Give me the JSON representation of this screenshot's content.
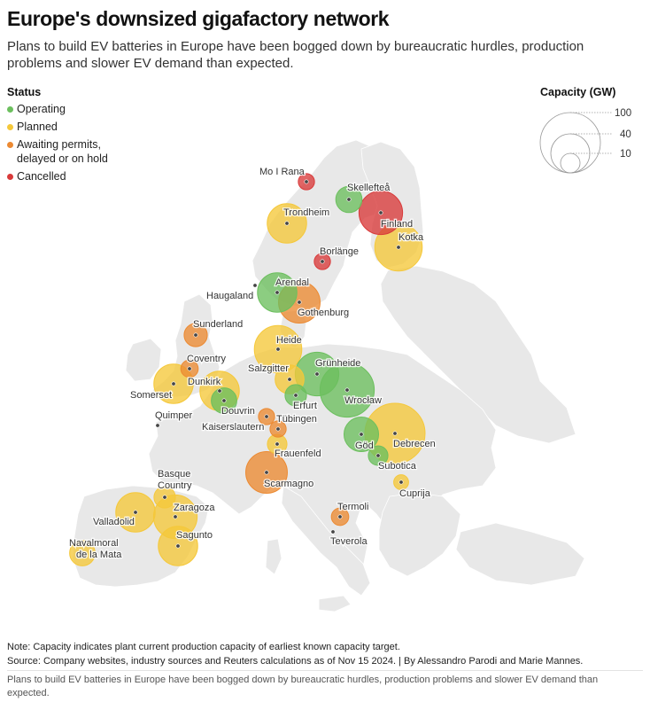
{
  "title": "Europe's downsized gigafactory network",
  "subtitle": "Plans to build EV batteries in Europe have been bogged down by bureaucratic hurdles, production problems and slower EV demand than expected.",
  "legend_status": {
    "title": "Status",
    "items": [
      {
        "key": "operating",
        "label": "Operating",
        "color": "#6cbf5e"
      },
      {
        "key": "planned",
        "label": "Planned",
        "color": "#f5c83a"
      },
      {
        "key": "awaiting",
        "label": "Awaiting permits, delayed or on hold",
        "line1": "Awaiting permits,",
        "line2": "delayed or on hold",
        "color": "#ec8a32"
      },
      {
        "key": "cancelled",
        "label": "Cancelled",
        "color": "#d93a3a"
      }
    ]
  },
  "legend_size": {
    "title": "Capacity (GW)",
    "values": [
      "100",
      "40",
      "10"
    ]
  },
  "map": {
    "land_color": "#e8e8e8",
    "sites": [
      {
        "name": "Mo I Rana",
        "status": "cancelled",
        "capacity_gw": 5
      },
      {
        "name": "Skellefteå",
        "status": "operating",
        "capacity_gw": 16
      },
      {
        "name": "Trondheim",
        "status": "planned",
        "capacity_gw": 40
      },
      {
        "name": "Finland",
        "status": "cancelled",
        "capacity_gw": 50
      },
      {
        "name": "Kotka",
        "status": "planned",
        "capacity_gw": 60
      },
      {
        "name": "Borlänge",
        "status": "cancelled",
        "capacity_gw": 5
      },
      {
        "name": "Haugaland",
        "status": "dot",
        "capacity_gw": 0
      },
      {
        "name": "Arendal",
        "status": "operating",
        "capacity_gw": 40
      },
      {
        "name": "Gothenburg",
        "status": "awaiting",
        "capacity_gw": 45
      },
      {
        "name": "Sunderland",
        "status": "awaiting",
        "capacity_gw": 12
      },
      {
        "name": "Heide",
        "status": "planned",
        "capacity_gw": 60
      },
      {
        "name": "Coventry",
        "status": "awaiting",
        "capacity_gw": 6
      },
      {
        "name": "Grünheide",
        "status": "operating",
        "capacity_gw": 50
      },
      {
        "name": "Salzgitter",
        "status": "planned",
        "capacity_gw": 20
      },
      {
        "name": "Somerset",
        "status": "planned",
        "capacity_gw": 40
      },
      {
        "name": "Dunkirk",
        "status": "planned",
        "capacity_gw": 40
      },
      {
        "name": "Wrocław",
        "status": "operating",
        "capacity_gw": 80
      },
      {
        "name": "Erfurt",
        "status": "operating",
        "capacity_gw": 10
      },
      {
        "name": "Douvrin",
        "status": "operating",
        "capacity_gw": 15
      },
      {
        "name": "Quimper",
        "status": "dot",
        "capacity_gw": 0
      },
      {
        "name": "Tübingen",
        "status": "awaiting",
        "capacity_gw": 5
      },
      {
        "name": "Kaiserslautern",
        "status": "awaiting",
        "capacity_gw": 5
      },
      {
        "name": "Debrecen",
        "status": "planned",
        "capacity_gw": 100
      },
      {
        "name": "Göd",
        "status": "operating",
        "capacity_gw": 30
      },
      {
        "name": "Frauenfeld",
        "status": "planned",
        "capacity_gw": 8
      },
      {
        "name": "Subotica",
        "status": "operating",
        "capacity_gw": 8
      },
      {
        "name": "Scarmagno",
        "status": "awaiting",
        "capacity_gw": 45
      },
      {
        "name": "Basque Country",
        "status": "planned",
        "capacity_gw": 10
      },
      {
        "name": "Cuprija",
        "status": "planned",
        "capacity_gw": 4
      },
      {
        "name": "Zaragoza",
        "status": "planned",
        "capacity_gw": 50
      },
      {
        "name": "Valladolid",
        "status": "planned",
        "capacity_gw": 40
      },
      {
        "name": "Sagunto",
        "status": "planned",
        "capacity_gw": 40
      },
      {
        "name": "Termoli",
        "status": "awaiting",
        "capacity_gw": 6
      },
      {
        "name": "Navalmoral de la Mata",
        "status": "planned",
        "capacity_gw": 15
      },
      {
        "name": "Teverola",
        "status": "dot",
        "capacity_gw": 0
      }
    ]
  },
  "note": "Note: Capacity indicates plant current production capacity of earliest known capacity target.",
  "source": "Source: Company websites, industry sources and Reuters calculations as of Nov 15 2024. | By Alessandro Parodi and Marie Mannes.",
  "caption": "Plans to build EV batteries in Europe have been bogged down by bureaucratic hurdles, production problems and slower EV demand than expected."
}
